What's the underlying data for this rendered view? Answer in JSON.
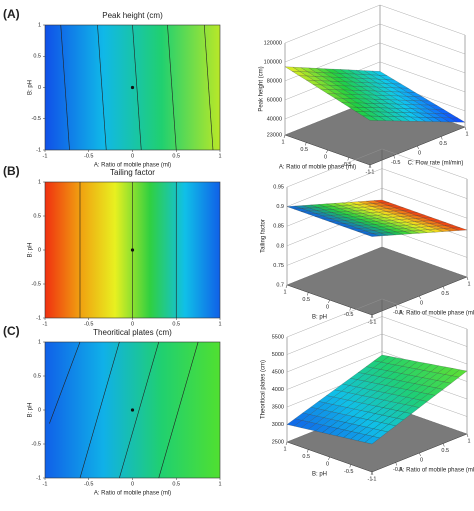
{
  "chart_data": [
    {
      "type": "contour",
      "panel": "(A)",
      "title": "Peak height (cm)",
      "x_label": "A: Ratio of mobile phase (ml)",
      "y_label": "B: pH",
      "xlim": [
        -1,
        1
      ],
      "ylim": [
        -1,
        1
      ],
      "xticks": [
        -1,
        -0.5,
        0,
        0.5,
        1
      ],
      "yticks": [
        -1,
        -0.5,
        0,
        0.5,
        1
      ],
      "colors": [
        "#1050e8",
        "#10b8e8",
        "#20d070",
        "#b8e828"
      ],
      "contours": [
        {
          "x": [
            -0.82,
            -0.72
          ],
          "y": [
            1,
            -1
          ]
        },
        {
          "x": [
            -0.4,
            -0.3
          ],
          "y": [
            1,
            -1
          ]
        },
        {
          "x": [
            0.0,
            0.1
          ],
          "y": [
            1,
            -1
          ]
        },
        {
          "x": [
            0.4,
            0.5
          ],
          "y": [
            1,
            -1
          ]
        },
        {
          "x": [
            0.82,
            0.92
          ],
          "y": [
            1,
            -1
          ]
        }
      ]
    },
    {
      "type": "surface",
      "z_label": "Peak height (cm)",
      "x_label": "A: Ratio of mobile phase (ml)",
      "y_label": "C: Flow rate (ml/min)",
      "xlim": [
        -1,
        1
      ],
      "ylim": [
        -1,
        1
      ],
      "zlim": [
        23000,
        120000
      ],
      "xticks": [
        -1,
        -0.5,
        0,
        0.5,
        1
      ],
      "yticks": [
        -1,
        -0.5,
        0,
        0.5,
        1
      ],
      "zticks": [
        23000,
        40000,
        60000,
        80000,
        100000,
        120000
      ],
      "z": [
        [
          70000,
          28000
        ],
        [
          95000,
          50000
        ]
      ],
      "colors": [
        "#1040ff",
        "#10c8f0",
        "#20d040",
        "#f0f020"
      ]
    },
    {
      "type": "contour",
      "panel": "(B)",
      "title": "Tailing factor",
      "y_label": "B: pH",
      "xlim": [
        -1,
        1
      ],
      "ylim": [
        -1,
        1
      ],
      "xticks": [
        -1,
        -0.5,
        0,
        0.5,
        1
      ],
      "yticks": [
        -1,
        -0.5,
        0,
        0.5,
        1
      ],
      "colors": [
        "#f03010",
        "#f0a010",
        "#e8f020",
        "#30d040",
        "#10c0e8",
        "#1060e8"
      ],
      "contours": [
        {
          "x": [
            -0.6,
            -0.6
          ],
          "y": [
            1,
            -1
          ]
        },
        {
          "x": [
            0.0,
            0.0
          ],
          "y": [
            1,
            -1
          ]
        },
        {
          "x": [
            0.5,
            0.5
          ],
          "y": [
            1,
            -1
          ]
        }
      ]
    },
    {
      "type": "surface",
      "z_label": "Tailing factor",
      "x_label": "B: pH",
      "y_label": "A: Ratio of mobile phase (ml)",
      "xlim": [
        -1,
        1
      ],
      "ylim": [
        -1,
        1
      ],
      "zlim": [
        0.7,
        0.95
      ],
      "xticks": [
        -1,
        -0.5,
        0,
        0.5,
        1
      ],
      "yticks": [
        -1,
        -0.5,
        0,
        0.5,
        1
      ],
      "zticks": [
        0.7,
        0.75,
        0.8,
        0.85,
        0.9,
        0.95
      ],
      "z": [
        [
          0.9,
          0.82
        ],
        [
          0.9,
          0.82
        ]
      ],
      "colors": [
        "#f03010",
        "#f0f020",
        "#20d040",
        "#1060e8"
      ]
    },
    {
      "type": "contour",
      "panel": "(C)",
      "title": "Theoritical plates (cm)",
      "x_label": "A: Ratio of mobile phase (ml)",
      "y_label": "B: pH",
      "xlim": [
        -1,
        1
      ],
      "ylim": [
        -1,
        1
      ],
      "xticks": [
        -1,
        -0.5,
        0,
        0.5,
        1
      ],
      "yticks": [
        -1,
        -0.5,
        0,
        0.5,
        1
      ],
      "colors": [
        "#1060e8",
        "#10b0e8",
        "#20d070",
        "#50e030"
      ],
      "contours": [
        {
          "x": [
            -0.6,
            -0.95
          ],
          "y": [
            1,
            -0.2
          ]
        },
        {
          "x": [
            -0.15,
            -0.6
          ],
          "y": [
            1,
            -1
          ]
        },
        {
          "x": [
            0.3,
            -0.15
          ],
          "y": [
            1,
            -1
          ]
        },
        {
          "x": [
            0.75,
            0.3
          ],
          "y": [
            1,
            -1
          ]
        }
      ]
    },
    {
      "type": "surface",
      "z_label": "Theoritical plates (cm)",
      "x_label": "B: pH",
      "y_label": "A: Ratio of mobile phase (ml)",
      "xlim": [
        -1,
        1
      ],
      "ylim": [
        -1,
        1
      ],
      "zlim": [
        2500,
        5500
      ],
      "xticks": [
        -1,
        -0.5,
        0,
        0.5,
        1
      ],
      "yticks": [
        -1,
        -0.5,
        0,
        0.5,
        1
      ],
      "zticks": [
        2500,
        3000,
        3500,
        4000,
        4500,
        5000,
        5500
      ],
      "z": [
        [
          3300,
          4300
        ],
        [
          3000,
          3900
        ]
      ],
      "colors": [
        "#1060e8",
        "#10c0e8",
        "#20d070",
        "#60e030"
      ]
    }
  ]
}
